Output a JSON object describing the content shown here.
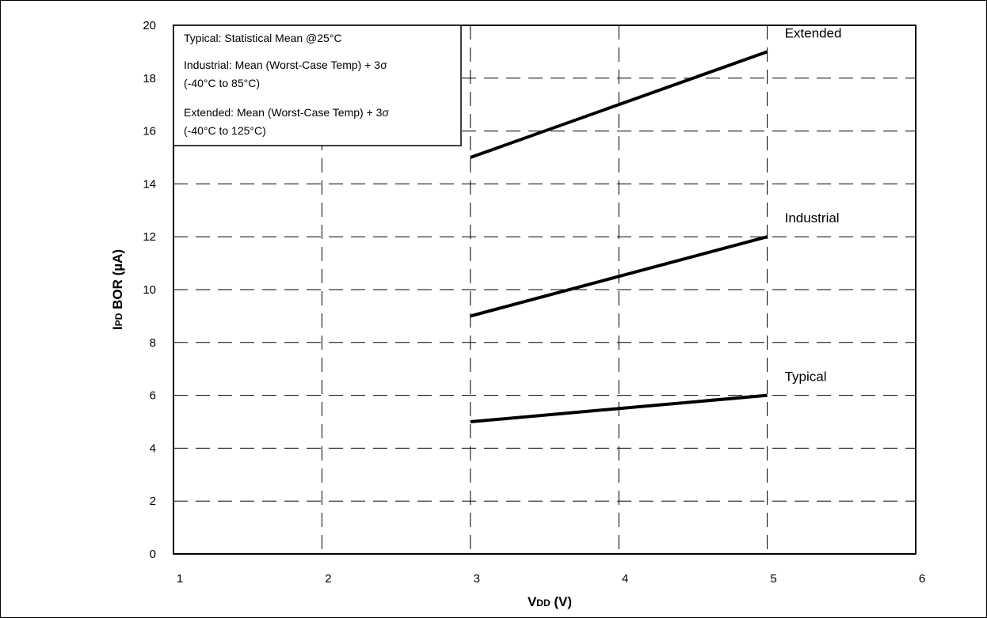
{
  "chart_data": {
    "type": "line",
    "xlabel": {
      "main": "V",
      "sub": "DD",
      "unit": " (V)"
    },
    "ylabel": {
      "main": "I",
      "sub": "PD",
      "unit": " BOR (µA)"
    },
    "xlim": [
      1,
      6
    ],
    "ylim": [
      0,
      20
    ],
    "xticks": [
      1,
      2,
      3,
      4,
      5,
      6
    ],
    "yticks": [
      0,
      2,
      4,
      6,
      8,
      10,
      12,
      14,
      16,
      18,
      20
    ],
    "grid": true,
    "grid_style": "dashed",
    "series": [
      {
        "name": "Extended",
        "x": [
          3,
          5
        ],
        "y": [
          15,
          19
        ]
      },
      {
        "name": "Industrial",
        "x": [
          3,
          5
        ],
        "y": [
          9,
          12
        ]
      },
      {
        "name": "Typical",
        "x": [
          3,
          5
        ],
        "y": [
          5,
          6
        ]
      }
    ],
    "notes": [
      "Typical: Statistical Mean @25°C",
      "Industrial: Mean (Worst-Case Temp) +  3σ",
      "(-40°C to 85°C)",
      "Extended: Mean (Worst-Case Temp) + 3σ",
      "(-40°C to 125°C)"
    ],
    "line_color": "#000000",
    "grid_color": "#000000"
  }
}
